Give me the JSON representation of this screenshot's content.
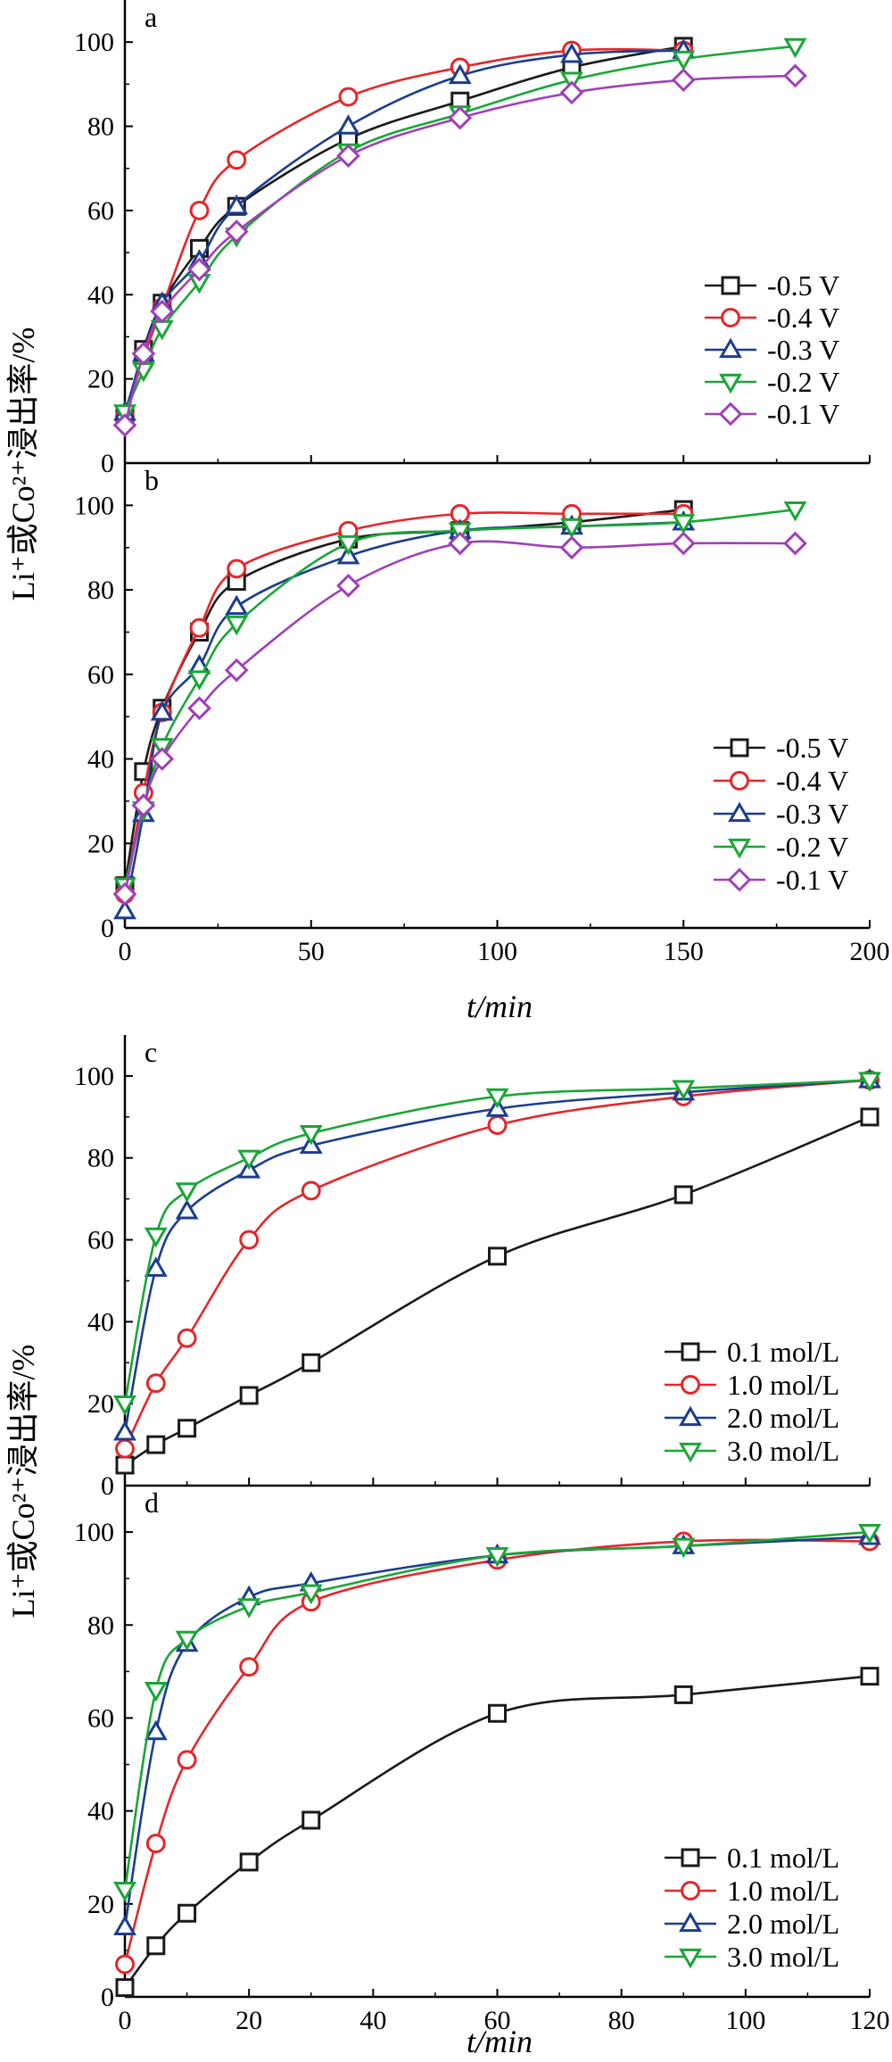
{
  "figure": {
    "ylabel": "Li⁺或Co²⁺浸出率/%",
    "xlabel_top": "t/min",
    "xlabel_bottom": "t/min"
  },
  "colors": {
    "black": "#1a1a1a",
    "red": "#e5262a",
    "blue": "#1b3d8f",
    "green": "#1aa637",
    "purple": "#a040b8"
  },
  "chart_data": [
    {
      "panel": "a",
      "type": "line",
      "xlim": [
        0,
        200
      ],
      "ylim": [
        0,
        110
      ],
      "yticks": [
        0,
        20,
        40,
        60,
        80,
        100
      ],
      "xticks": [
        0,
        50,
        100,
        150,
        200
      ],
      "legend_position": "right",
      "series": [
        {
          "name": "-0.5 V",
          "marker": "square",
          "color": "#1a1a1a",
          "x": [
            0,
            5,
            10,
            20,
            30,
            60,
            90,
            120,
            150
          ],
          "y": [
            11,
            27,
            38,
            51,
            61,
            77,
            86,
            94,
            99
          ]
        },
        {
          "name": "-0.4 V",
          "marker": "circle",
          "color": "#e5262a",
          "x": [
            0,
            5,
            10,
            20,
            30,
            60,
            90,
            120,
            150
          ],
          "y": [
            11,
            25,
            37,
            60,
            72,
            87,
            94,
            98,
            98
          ]
        },
        {
          "name": "-0.3 V",
          "marker": "triangle-up",
          "color": "#1b3d8f",
          "x": [
            0,
            5,
            10,
            20,
            30,
            60,
            90,
            120,
            150
          ],
          "y": [
            12,
            26,
            38,
            48,
            61,
            80,
            92,
            97,
            98
          ]
        },
        {
          "name": "-0.2 V",
          "marker": "triangle-down",
          "color": "#1aa637",
          "x": [
            0,
            5,
            10,
            20,
            30,
            60,
            90,
            120,
            150,
            180
          ],
          "y": [
            12,
            22,
            32,
            43,
            54,
            74,
            83,
            91,
            96,
            99
          ]
        },
        {
          "name": "-0.1 V",
          "marker": "diamond",
          "color": "#a040b8",
          "x": [
            0,
            5,
            10,
            20,
            30,
            60,
            90,
            120,
            150,
            180
          ],
          "y": [
            9,
            26,
            36,
            46,
            55,
            73,
            82,
            88,
            91,
            92
          ]
        }
      ]
    },
    {
      "panel": "b",
      "type": "line",
      "xlim": [
        0,
        200
      ],
      "ylim": [
        0,
        110
      ],
      "yticks": [
        0,
        20,
        40,
        60,
        80,
        100
      ],
      "xticks": [
        0,
        50,
        100,
        150,
        200
      ],
      "legend_position": "right",
      "series": [
        {
          "name": "-0.5 V",
          "marker": "square",
          "color": "#1a1a1a",
          "x": [
            0,
            5,
            10,
            20,
            30,
            60,
            90,
            120,
            150
          ],
          "y": [
            10,
            37,
            52,
            70,
            82,
            92,
            94,
            96,
            99
          ]
        },
        {
          "name": "-0.4 V",
          "marker": "circle",
          "color": "#e5262a",
          "x": [
            0,
            5,
            10,
            20,
            30,
            60,
            90,
            120,
            150
          ],
          "y": [
            8,
            32,
            51,
            71,
            85,
            94,
            98,
            98,
            98
          ]
        },
        {
          "name": "-0.3 V",
          "marker": "triangle-up",
          "color": "#1b3d8f",
          "x": [
            0,
            5,
            10,
            20,
            30,
            60,
            90,
            120,
            150
          ],
          "y": [
            4,
            27,
            51,
            62,
            76,
            88,
            94,
            95,
            96
          ]
        },
        {
          "name": "-0.2 V",
          "marker": "triangle-down",
          "color": "#1aa637",
          "x": [
            0,
            5,
            10,
            20,
            30,
            60,
            90,
            120,
            150,
            180
          ],
          "y": [
            10,
            28,
            43,
            59,
            72,
            91,
            94,
            95,
            96,
            99
          ]
        },
        {
          "name": "-0.1 V",
          "marker": "diamond",
          "color": "#a040b8",
          "x": [
            0,
            5,
            10,
            20,
            30,
            60,
            90,
            120,
            150,
            180
          ],
          "y": [
            8,
            29,
            40,
            52,
            61,
            81,
            91,
            90,
            91,
            91
          ]
        }
      ]
    },
    {
      "panel": "c",
      "type": "line",
      "xlim": [
        0,
        120
      ],
      "ylim": [
        0,
        110
      ],
      "yticks": [
        0,
        20,
        40,
        60,
        80,
        100
      ],
      "xticks": [
        0,
        20,
        40,
        60,
        80,
        100,
        120
      ],
      "legend_position": "bottom-right",
      "series": [
        {
          "name": "0.1 mol/L",
          "marker": "square",
          "color": "#1a1a1a",
          "x": [
            0,
            5,
            10,
            20,
            30,
            60,
            90,
            120
          ],
          "y": [
            5,
            10,
            14,
            22,
            30,
            56,
            71,
            90
          ]
        },
        {
          "name": "1.0 mol/L",
          "marker": "circle",
          "color": "#e5262a",
          "x": [
            0,
            5,
            10,
            20,
            30,
            60,
            90,
            120
          ],
          "y": [
            9,
            25,
            36,
            60,
            72,
            88,
            95,
            99
          ]
        },
        {
          "name": "2.0 mol/L",
          "marker": "triangle-up",
          "color": "#1b3d8f",
          "x": [
            0,
            5,
            10,
            20,
            30,
            60,
            90,
            120
          ],
          "y": [
            13,
            53,
            67,
            77,
            83,
            92,
            96,
            99
          ]
        },
        {
          "name": "3.0 mol/L",
          "marker": "triangle-down",
          "color": "#1aa637",
          "x": [
            0,
            5,
            10,
            20,
            30,
            60,
            90,
            120
          ],
          "y": [
            20,
            61,
            72,
            80,
            86,
            95,
            97,
            99
          ]
        }
      ]
    },
    {
      "panel": "d",
      "type": "line",
      "xlim": [
        0,
        120
      ],
      "ylim": [
        0,
        110
      ],
      "yticks": [
        0,
        20,
        40,
        60,
        80,
        100
      ],
      "xticks": [
        0,
        20,
        40,
        60,
        80,
        100,
        120
      ],
      "legend_position": "bottom-right",
      "series": [
        {
          "name": "0.1 mol/L",
          "marker": "square",
          "color": "#1a1a1a",
          "x": [
            0,
            5,
            10,
            20,
            30,
            60,
            90,
            120
          ],
          "y": [
            2,
            11,
            18,
            29,
            38,
            61,
            65,
            69
          ]
        },
        {
          "name": "1.0 mol/L",
          "marker": "circle",
          "color": "#e5262a",
          "x": [
            0,
            5,
            10,
            20,
            30,
            60,
            90,
            120
          ],
          "y": [
            7,
            33,
            51,
            71,
            85,
            94,
            98,
            98
          ]
        },
        {
          "name": "2.0 mol/L",
          "marker": "triangle-up",
          "color": "#1b3d8f",
          "x": [
            0,
            5,
            10,
            20,
            30,
            60,
            90,
            120
          ],
          "y": [
            15,
            57,
            76,
            86,
            89,
            95,
            97,
            99
          ]
        },
        {
          "name": "3.0 mol/L",
          "marker": "triangle-down",
          "color": "#1aa637",
          "x": [
            0,
            5,
            10,
            20,
            30,
            60,
            90,
            120
          ],
          "y": [
            23,
            66,
            77,
            84,
            87,
            95,
            97,
            100
          ]
        }
      ]
    }
  ]
}
